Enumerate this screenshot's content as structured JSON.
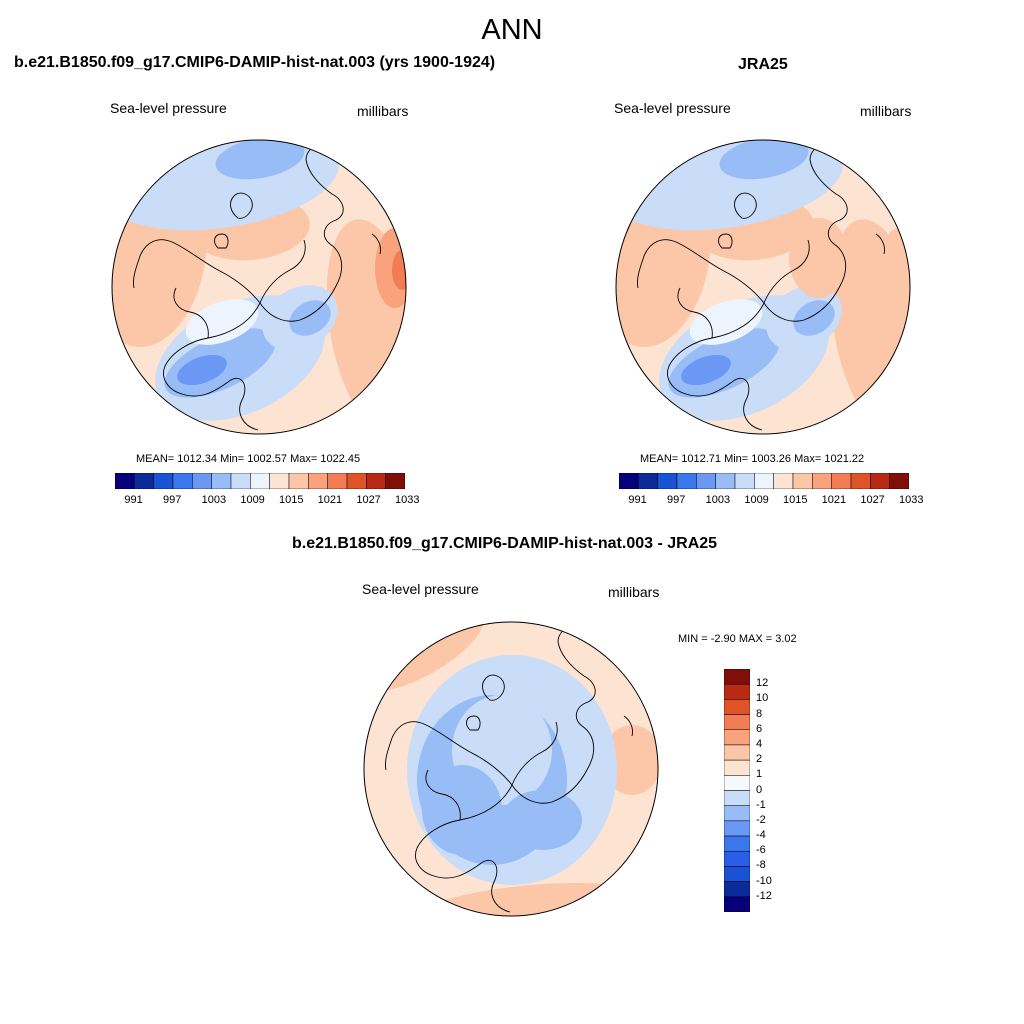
{
  "figure": {
    "title": "ANN",
    "colors": {
      "ramp": [
        "#08007a",
        "#0c2a9a",
        "#1a52d6",
        "#3a76ee",
        "#6a98f4",
        "#98bcf6",
        "#c9dcf8",
        "#ecf4fd",
        "#fde4d2",
        "#fcc6a8",
        "#f9a27c",
        "#f27c54",
        "#e05328",
        "#b82a14",
        "#7f0f08"
      ],
      "coast": "#000000"
    },
    "panels": {
      "model": {
        "title": "b.e21.B1850.f09_g17.CMIP6-DAMIP-hist-nat.003 (yrs 1900-1924)",
        "left_label": "Sea-level pressure",
        "right_label": "millibars",
        "stats": "MEAN= 1012.34  Min= 1002.57  Max= 1022.45",
        "colorbar_labels": [
          "991",
          "997",
          "1003",
          "1009",
          "1015",
          "1021",
          "1027",
          "1033"
        ]
      },
      "obs": {
        "title": "JRA25",
        "left_label": "Sea-level pressure",
        "right_label": "millibars",
        "stats": "MEAN= 1012.71  Min= 1003.26  Max= 1021.22",
        "colorbar_labels": [
          "991",
          "997",
          "1003",
          "1009",
          "1015",
          "1021",
          "1027",
          "1033"
        ]
      },
      "diff": {
        "title": "b.e21.B1850.f09_g17.CMIP6-DAMIP-hist-nat.003 - JRA25",
        "left_label": "Sea-level pressure",
        "right_label": "millibars",
        "stats": "MIN =  -2.90 MAX =   3.02",
        "colorbar_labels": [
          "12",
          "10",
          "8",
          "6",
          "4",
          "2",
          "1",
          "0",
          "-1",
          "-2",
          "-4",
          "-6",
          "-8",
          "-10",
          "-12"
        ]
      }
    }
  }
}
